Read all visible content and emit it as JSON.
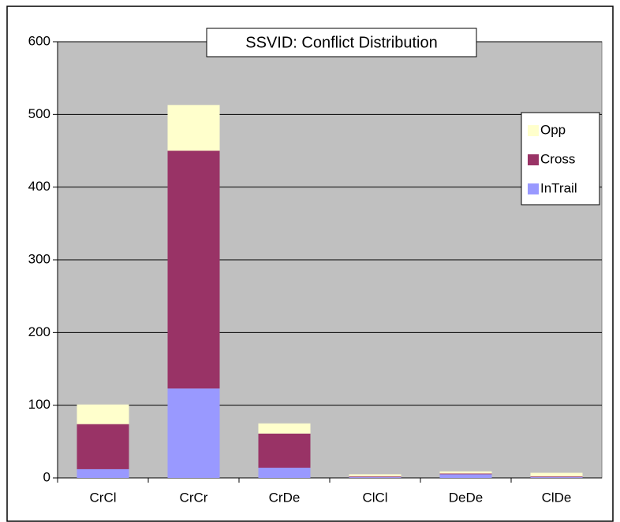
{
  "chart_data": {
    "type": "stacked_bar",
    "title": "SSVID: Conflict Distribution",
    "categories": [
      "CrCl",
      "CrCr",
      "CrDe",
      "ClCl",
      "DeDe",
      "ClDe"
    ],
    "series": [
      {
        "name": "InTrail",
        "color": "#9999ff",
        "values": [
          12,
          123,
          14,
          1,
          5,
          1
        ]
      },
      {
        "name": "Cross",
        "color": "#993366",
        "values": [
          62,
          327,
          47,
          1,
          1,
          1
        ]
      },
      {
        "name": "Opp",
        "color": "#ffffcc",
        "values": [
          27,
          63,
          14,
          3,
          3,
          5
        ]
      }
    ],
    "ylim": [
      0,
      600
    ],
    "yticks": [
      0,
      100,
      200,
      300,
      400,
      500,
      600
    ],
    "grid": true,
    "legend": "right"
  }
}
